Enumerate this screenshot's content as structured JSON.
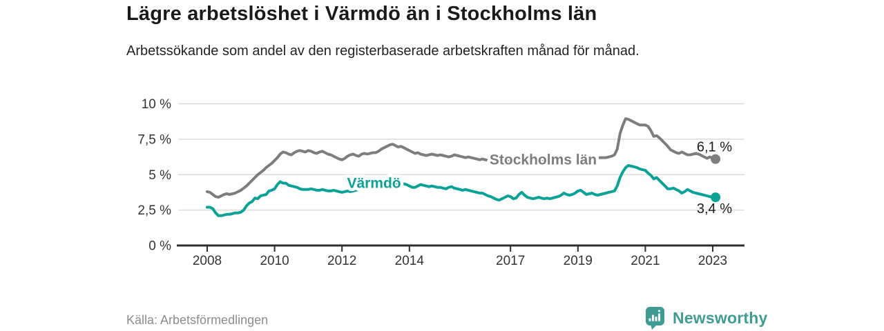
{
  "header": {
    "title": "Lägre arbetslöshet i Värmdö än i Stockholms län",
    "subtitle": "Arbetssökande som andel av den registerbaserade arbetskraften månad för månad."
  },
  "footer": {
    "source": "Källa: Arbetsförmedlingen",
    "brand": "Newsworthy",
    "brand_icon": "newsworthy-bars-bubble-icon",
    "brand_color": "#3e9c93"
  },
  "colors": {
    "background": "#ffffff",
    "grid": "#dcdcdc",
    "axis": "#2d2d2d",
    "tick_text": "#333333",
    "annotation_text": "#1a1a1a",
    "stockholm_line": "#7d7d7d",
    "varmdo_line": "#0aa296"
  },
  "chart_data": {
    "type": "line",
    "title": "Lägre arbetslöshet i Värmdö än i Stockholms län",
    "subtitle": "Arbetssökande som andel av den registerbaserade arbetskraften månad för månad.",
    "xlabel": "",
    "ylabel": "",
    "grid": "horizontal",
    "legend_position": "inline-labels",
    "x_start_year": 2008,
    "x_start_month": 1,
    "x_step_months": 1,
    "x_end_label_year": "2023",
    "xlim": [
      2007.2,
      2024.0
    ],
    "ylim": [
      0,
      10
    ],
    "x_ticks": [
      2008,
      2010,
      2012,
      2014,
      2017,
      2019,
      2021,
      2023
    ],
    "x_tick_labels": [
      "2008",
      "2010",
      "2012",
      "2014",
      "2017",
      "2019",
      "2021",
      "2023"
    ],
    "y_ticks": [
      0,
      2.5,
      5,
      7.5,
      10
    ],
    "y_tick_labels": [
      "0 %",
      "2,5 %",
      "5 %",
      "7,5 %",
      "10 %"
    ],
    "series": [
      {
        "name": "Stockholms län",
        "color": "#7d7d7d",
        "end_label": "6,1 %",
        "end_value": 6.1,
        "label_anchor": {
          "year": 2017.97,
          "pct": 6.05
        },
        "values": [
          3.8,
          3.75,
          3.6,
          3.45,
          3.4,
          3.5,
          3.6,
          3.65,
          3.6,
          3.65,
          3.7,
          3.8,
          3.9,
          4.05,
          4.2,
          4.4,
          4.6,
          4.8,
          5.0,
          5.15,
          5.3,
          5.5,
          5.65,
          5.8,
          6.0,
          6.2,
          6.45,
          6.6,
          6.55,
          6.45,
          6.4,
          6.55,
          6.65,
          6.7,
          6.65,
          6.6,
          6.7,
          6.65,
          6.55,
          6.5,
          6.6,
          6.65,
          6.55,
          6.45,
          6.4,
          6.3,
          6.2,
          6.1,
          6.05,
          6.15,
          6.3,
          6.4,
          6.45,
          6.35,
          6.3,
          6.45,
          6.5,
          6.45,
          6.5,
          6.55,
          6.55,
          6.65,
          6.8,
          6.9,
          7.0,
          7.1,
          7.15,
          7.05,
          6.95,
          7.0,
          6.9,
          6.8,
          6.7,
          6.6,
          6.5,
          6.55,
          6.45,
          6.4,
          6.35,
          6.4,
          6.45,
          6.4,
          6.35,
          6.4,
          6.35,
          6.3,
          6.25,
          6.3,
          6.4,
          6.35,
          6.3,
          6.25,
          6.2,
          6.25,
          6.2,
          6.15,
          6.1,
          6.05,
          6.1,
          6.05,
          6.0,
          6.05,
          6.1,
          6.05,
          6.0,
          5.95,
          6.0,
          6.05,
          6.0,
          5.95,
          6.0,
          6.05,
          6.0,
          6.05,
          6.1,
          6.05,
          6.0,
          6.0,
          6.05,
          6.1,
          6.05,
          6.0,
          5.95,
          6.0,
          6.05,
          6.0,
          6.05,
          6.0,
          5.95,
          6.0,
          6.05,
          6.1,
          6.1,
          6.1,
          6.1,
          6.15,
          6.15,
          6.2,
          6.15,
          6.15,
          6.2,
          6.2,
          6.2,
          6.25,
          6.3,
          6.4,
          6.8,
          7.9,
          8.5,
          8.95,
          8.9,
          8.8,
          8.7,
          8.6,
          8.5,
          8.5,
          8.5,
          8.4,
          8.1,
          7.7,
          7.75,
          7.6,
          7.4,
          7.2,
          7.0,
          6.75,
          6.65,
          6.55,
          6.5,
          6.6,
          6.5,
          6.4,
          6.4,
          6.45,
          6.5,
          6.45,
          6.35,
          6.25,
          6.15,
          6.25,
          6.15,
          6.1
        ]
      },
      {
        "name": "Värmdö",
        "color": "#0aa296",
        "end_label": "3,4 %",
        "end_value": 3.4,
        "label_anchor": {
          "year": 2012.95,
          "pct": 4.4
        },
        "values": [
          2.7,
          2.7,
          2.6,
          2.3,
          2.1,
          2.1,
          2.15,
          2.2,
          2.2,
          2.25,
          2.3,
          2.3,
          2.35,
          2.5,
          2.8,
          3.0,
          3.1,
          3.35,
          3.3,
          3.5,
          3.55,
          3.6,
          3.85,
          3.9,
          4.0,
          4.3,
          4.5,
          4.4,
          4.4,
          4.25,
          4.2,
          4.15,
          4.1,
          4.0,
          3.95,
          3.95,
          3.95,
          4.0,
          3.95,
          3.9,
          3.9,
          3.95,
          3.9,
          3.85,
          3.85,
          3.9,
          3.85,
          3.8,
          3.75,
          3.8,
          3.85,
          3.8,
          3.85,
          3.9,
          3.95,
          4.0,
          4.05,
          4.1,
          4.1,
          4.15,
          4.15,
          4.2,
          4.25,
          4.3,
          4.3,
          4.35,
          4.4,
          4.35,
          4.3,
          4.35,
          4.35,
          4.3,
          4.2,
          4.1,
          4.1,
          4.2,
          4.3,
          4.25,
          4.2,
          4.15,
          4.2,
          4.15,
          4.1,
          4.1,
          4.05,
          4.0,
          4.1,
          4.15,
          4.05,
          4.0,
          3.95,
          3.9,
          3.95,
          3.9,
          3.85,
          3.8,
          3.75,
          3.7,
          3.7,
          3.6,
          3.5,
          3.45,
          3.35,
          3.25,
          3.2,
          3.3,
          3.4,
          3.5,
          3.45,
          3.3,
          3.35,
          3.6,
          3.75,
          3.55,
          3.4,
          3.35,
          3.3,
          3.35,
          3.4,
          3.35,
          3.3,
          3.35,
          3.3,
          3.35,
          3.4,
          3.45,
          3.55,
          3.7,
          3.6,
          3.55,
          3.6,
          3.7,
          3.85,
          3.9,
          3.75,
          3.6,
          3.65,
          3.7,
          3.6,
          3.55,
          3.6,
          3.65,
          3.7,
          3.75,
          3.8,
          3.85,
          4.2,
          4.8,
          5.2,
          5.5,
          5.65,
          5.6,
          5.55,
          5.5,
          5.4,
          5.35,
          5.3,
          5.1,
          4.95,
          4.7,
          4.8,
          4.6,
          4.4,
          4.2,
          4.0,
          4.0,
          4.05,
          3.95,
          3.85,
          3.7,
          3.8,
          3.95,
          3.85,
          3.75,
          3.7,
          3.65,
          3.6,
          3.55,
          3.5,
          3.45,
          3.4,
          3.4
        ]
      }
    ]
  }
}
